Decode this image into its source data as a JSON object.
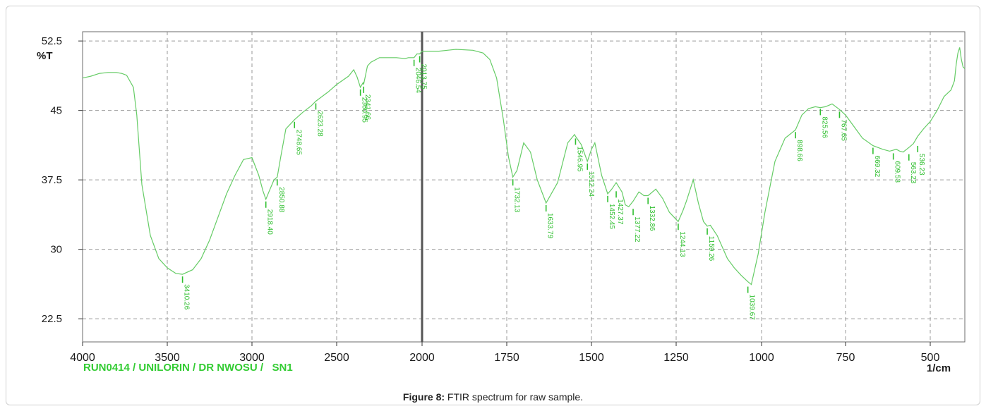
{
  "chart_data": {
    "type": "line",
    "ylabel": "%T",
    "xlabel": "1/cm",
    "footer": "RUN0414 / UNILORIN / DR NWOSU /   SN1",
    "xlim": [
      4000,
      400
    ],
    "ylim": [
      20,
      53.5
    ],
    "x_ticks": [
      4000,
      3500,
      3000,
      2500,
      2000,
      1750,
      1500,
      1250,
      1000,
      750,
      500
    ],
    "y_ticks": [
      52.5,
      45,
      37.5,
      30,
      22.5
    ],
    "grid": true,
    "line_color": "#66cc66",
    "label_color": "#2fbf2f",
    "series": [
      {
        "x": [
          4000,
          3950,
          3900,
          3850,
          3800,
          3770,
          3740,
          3700,
          3680,
          3650,
          3600,
          3550,
          3500,
          3450,
          3410,
          3350,
          3300,
          3250,
          3200,
          3150,
          3100,
          3050,
          3000,
          2960,
          2935,
          2918,
          2900,
          2870,
          2851,
          2830,
          2800,
          2749,
          2700,
          2650,
          2623,
          2550,
          2500,
          2430,
          2400,
          2380,
          2361,
          2345,
          2342,
          2320,
          2300,
          2250,
          2200,
          2150,
          2100,
          2080,
          2047,
          2030,
          2014,
          2000,
          1950,
          1900,
          1850,
          1820,
          1800,
          1780,
          1760,
          1745,
          1732,
          1720,
          1700,
          1680,
          1660,
          1634,
          1600,
          1570,
          1550,
          1547,
          1530,
          1512,
          1500,
          1490,
          1470,
          1452,
          1440,
          1427,
          1410,
          1400,
          1390,
          1377,
          1360,
          1345,
          1333,
          1310,
          1290,
          1270,
          1244,
          1230,
          1220,
          1200,
          1185,
          1170,
          1159,
          1150,
          1130,
          1100,
          1080,
          1060,
          1040,
          1030,
          1010,
          990,
          960,
          930,
          899,
          880,
          860,
          840,
          825,
          810,
          790,
          768,
          750,
          720,
          700,
          669,
          640,
          620,
          600,
          590,
          580,
          563,
          550,
          537,
          520,
          500,
          480,
          460,
          440,
          430,
          425,
          420,
          415,
          410,
          405,
          400
        ],
        "y": [
          48.5,
          48.7,
          49,
          49.1,
          49.1,
          49,
          48.8,
          47.5,
          44.5,
          37,
          31.5,
          29,
          28,
          27.4,
          27.3,
          27.8,
          29,
          31,
          33.5,
          36,
          38,
          39.7,
          39.9,
          38,
          36.3,
          35.4,
          36.2,
          37.5,
          37.8,
          40,
          43,
          44,
          44.8,
          45.5,
          46,
          47,
          47.8,
          48.7,
          49.4,
          48.6,
          47.5,
          48,
          47.8,
          49.8,
          50.2,
          50.7,
          50.7,
          50.7,
          50.6,
          50.7,
          50.7,
          51.1,
          51.1,
          51.4,
          51.4,
          51.6,
          51.5,
          51.2,
          50.5,
          48.5,
          44,
          40,
          37.8,
          38.5,
          41.5,
          40.5,
          37.5,
          35,
          37.2,
          41.5,
          42.4,
          42.2,
          41.3,
          39.5,
          40.8,
          41.5,
          38,
          36,
          36.5,
          37.2,
          36.2,
          34.8,
          34.6,
          35.2,
          36.2,
          35.8,
          35.8,
          36.5,
          35.5,
          34,
          33,
          34.2,
          35.2,
          37.5,
          35,
          33,
          32.5,
          32.6,
          31.5,
          29,
          28,
          27.2,
          26.5,
          26.2,
          29.5,
          34,
          39.5,
          42,
          42.9,
          44.5,
          45.2,
          45.4,
          45.3,
          45.4,
          45.7,
          45.1,
          44.5,
          43,
          42,
          41.2,
          40.8,
          40.6,
          40.8,
          40.6,
          40.5,
          41,
          41.4,
          42.2,
          43,
          43.8,
          45,
          46.5,
          47.2,
          48.2,
          50,
          51.2,
          51.8,
          50.5,
          49.7,
          49.5
        ]
      }
    ],
    "annotations": [
      {
        "x": 3410,
        "y": 27.3,
        "label": "3410.26"
      },
      {
        "x": 2918,
        "y": 35.4,
        "label": "2918.40"
      },
      {
        "x": 2851,
        "y": 37.8,
        "label": "2850.88"
      },
      {
        "x": 2749,
        "y": 44,
        "label": "2748.65"
      },
      {
        "x": 2623,
        "y": 46,
        "label": "2623.28"
      },
      {
        "x": 2361,
        "y": 47.5,
        "label": "2360.95"
      },
      {
        "x": 2342,
        "y": 47.8,
        "label": "2341.66"
      },
      {
        "x": 2047,
        "y": 50.7,
        "label": "2046.54"
      },
      {
        "x": 2014,
        "y": 51.1,
        "label": "2013.75"
      },
      {
        "x": 1732,
        "y": 37.8,
        "label": "1732.13"
      },
      {
        "x": 1634,
        "y": 35,
        "label": "1633.79"
      },
      {
        "x": 1547,
        "y": 42.2,
        "label": "1546.95"
      },
      {
        "x": 1512,
        "y": 39.5,
        "label": "1512.24"
      },
      {
        "x": 1452,
        "y": 36,
        "label": "1452.45"
      },
      {
        "x": 1427,
        "y": 36.5,
        "label": "1427.37"
      },
      {
        "x": 1377,
        "y": 34.6,
        "label": "1377.22"
      },
      {
        "x": 1333,
        "y": 35.8,
        "label": "1332.86"
      },
      {
        "x": 1244,
        "y": 33,
        "label": "1244.13"
      },
      {
        "x": 1159,
        "y": 32.5,
        "label": "1159.26"
      },
      {
        "x": 1040,
        "y": 26.2,
        "label": "1039.67"
      },
      {
        "x": 899,
        "y": 42.9,
        "label": "898.66"
      },
      {
        "x": 825,
        "y": 45.4,
        "label": "825.56"
      },
      {
        "x": 768,
        "y": 45.1,
        "label": "767.65"
      },
      {
        "x": 669,
        "y": 41.2,
        "label": "669.32"
      },
      {
        "x": 609,
        "y": 40.6,
        "label": "609.53"
      },
      {
        "x": 563,
        "y": 40.5,
        "label": "563.23"
      },
      {
        "x": 537,
        "y": 41.4,
        "label": "536.23"
      }
    ]
  },
  "caption": {
    "label": "Figure 8:",
    "text": " FTIR spectrum for raw sample."
  }
}
